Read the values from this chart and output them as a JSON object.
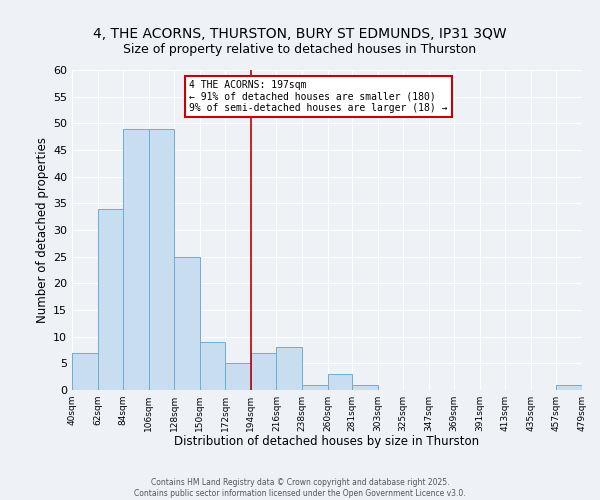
{
  "title": "4, THE ACORNS, THURSTON, BURY ST EDMUNDS, IP31 3QW",
  "subtitle": "Size of property relative to detached houses in Thurston",
  "xlabel": "Distribution of detached houses by size in Thurston",
  "ylabel": "Number of detached properties",
  "bin_edges": [
    40,
    62,
    84,
    106,
    128,
    150,
    172,
    194,
    216,
    238,
    260,
    281,
    303,
    325,
    347,
    369,
    391,
    413,
    435,
    457,
    479
  ],
  "counts": [
    7,
    34,
    49,
    49,
    25,
    9,
    5,
    7,
    8,
    1,
    3,
    1,
    0,
    0,
    0,
    0,
    0,
    0,
    0,
    1
  ],
  "bar_color": "#c8ddf0",
  "bar_edge_color": "#6aaed6",
  "vline_x": 194,
  "vline_color": "#bb0000",
  "annotation_title": "4 THE ACORNS: 197sqm",
  "annotation_line1": "← 91% of detached houses are smaller (180)",
  "annotation_line2": "9% of semi-detached houses are larger (18) →",
  "annotation_box_color": "#cc0000",
  "ylim": [
    0,
    60
  ],
  "yticks": [
    0,
    5,
    10,
    15,
    20,
    25,
    30,
    35,
    40,
    45,
    50,
    55,
    60
  ],
  "tick_labels": [
    "40sqm",
    "62sqm",
    "84sqm",
    "106sqm",
    "128sqm",
    "150sqm",
    "172sqm",
    "194sqm",
    "216sqm",
    "238sqm",
    "260sqm",
    "281sqm",
    "303sqm",
    "325sqm",
    "347sqm",
    "369sqm",
    "391sqm",
    "413sqm",
    "435sqm",
    "457sqm",
    "479sqm"
  ],
  "footer_line1": "Contains HM Land Registry data © Crown copyright and database right 2025.",
  "footer_line2": "Contains public sector information licensed under the Open Government Licence v3.0.",
  "background_color": "#eef2f7",
  "title_fontsize": 10,
  "subtitle_fontsize": 9
}
